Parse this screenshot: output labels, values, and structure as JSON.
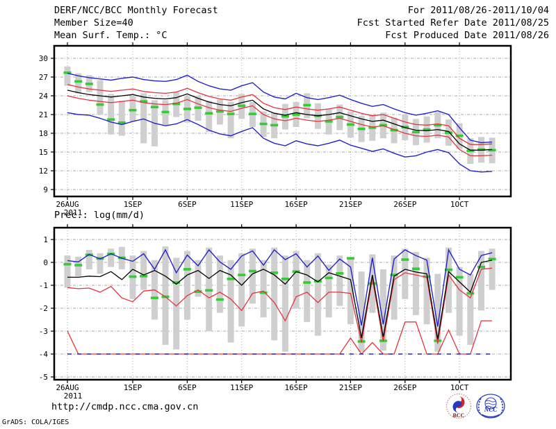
{
  "header": {
    "title": "DERF/NCC/BCC Monthly Forecast",
    "member_size": "Member Size=40",
    "for_range": "For 2011/08/26-2011/10/04",
    "fcst_started": "Fcst Started Refer Date 2011/08/25",
    "fcst_produced": "Fcst Produced Date 2011/08/26"
  },
  "footer": {
    "url": "http://cmdp.ncc.cma.gov.cn",
    "credit": "GrADS: COLA/IGES"
  },
  "logos": {
    "bcc_label": "BCC",
    "ncc_label": "NCC"
  },
  "colors": {
    "blue": "#2222cc",
    "red": "#e6323c",
    "green": "#33cc33",
    "gray_bar": "#cfcfcf",
    "black": "#000000",
    "grid": "#a8a8a8"
  },
  "chart_data": [
    {
      "type": "line",
      "name": "temperature-chart",
      "title": "Mean Surf. Temp.: °C",
      "start_date": "2011-08-26",
      "end_date": "2011-10-04",
      "n_days": 40,
      "ylim": [
        9,
        30
      ],
      "y_ticks": [
        30,
        27,
        24,
        21,
        18,
        15,
        12,
        9
      ],
      "x_tick_labels": [
        "26AUG",
        "1SEP",
        "6SEP",
        "11SEP",
        "16SEP",
        "21SEP",
        "26SEP",
        "1OCT"
      ],
      "x_tick_day_index": [
        0,
        6,
        11,
        16,
        21,
        26,
        31,
        36
      ],
      "x_sub_label": "2011",
      "grid": true,
      "series": {
        "member_spread_bar": {
          "color": "#cfcfcf",
          "low": [
            25.6,
            24.4,
            24.6,
            21.0,
            17.8,
            17.6,
            19.9,
            16.4,
            15.9,
            19.3,
            20.6,
            19.7,
            20.0,
            18.2,
            19.4,
            17.2,
            20.3,
            19.0,
            17.4,
            17.2,
            18.6,
            19.0,
            20.4,
            18.7,
            17.8,
            18.5,
            17.3,
            16.6,
            16.8,
            17.2,
            16.4,
            16.9,
            16.1,
            16.5,
            17.2,
            16.0,
            15.5,
            13.1,
            13.3,
            13.2
          ],
          "high": [
            28.7,
            27.6,
            27.3,
            26.5,
            24.3,
            23.2,
            23.9,
            24.4,
            23.3,
            23.3,
            24.6,
            23.9,
            24.0,
            23.2,
            23.4,
            23.0,
            24.3,
            23.0,
            21.5,
            21.3,
            22.7,
            23.0,
            24.4,
            22.8,
            21.9,
            22.6,
            21.5,
            20.8,
            21.0,
            21.3,
            20.5,
            21.0,
            20.3,
            20.7,
            21.4,
            20.2,
            19.6,
            17.2,
            17.4,
            17.3
          ]
        },
        "observation_marks": {
          "color": "#33cc33",
          "values": [
            27.7,
            26.3,
            25.9,
            22.6,
            20.2,
            19.7,
            21.7,
            23.1,
            22.2,
            21.4,
            22.7,
            21.9,
            22.1,
            21.2,
            21.5,
            21.1,
            22.4,
            21.1,
            19.5,
            19.3,
            20.7,
            21.0,
            22.5,
            20.8,
            19.9,
            20.6,
            19.4,
            18.7,
            18.9,
            19.3,
            18.5,
            19.0,
            18.2,
            18.6,
            19.3,
            18.1,
            17.6,
            15.2,
            15.4,
            15.3
          ]
        },
        "max_member_line": {
          "color": "#2222cc",
          "width": 1.4,
          "values": [
            27.6,
            27.2,
            26.9,
            26.7,
            26.5,
            26.8,
            27.0,
            26.6,
            26.4,
            26.3,
            26.6,
            27.3,
            26.3,
            25.6,
            25.1,
            24.9,
            25.6,
            26.1,
            24.6,
            23.8,
            23.5,
            24.4,
            23.7,
            23.4,
            23.7,
            24.1,
            23.4,
            22.8,
            22.3,
            22.6,
            21.9,
            21.3,
            20.9,
            21.2,
            21.6,
            21.0,
            18.9,
            16.9,
            16.5,
            16.6
          ]
        },
        "min_member_line": {
          "color": "#2222cc",
          "width": 1.4,
          "values": [
            21.3,
            21.0,
            20.9,
            20.4,
            19.8,
            19.4,
            19.9,
            20.3,
            19.6,
            19.2,
            19.5,
            20.2,
            19.4,
            18.5,
            17.9,
            17.6,
            18.3,
            18.9,
            17.2,
            16.4,
            16.0,
            16.8,
            16.3,
            16.0,
            16.4,
            16.9,
            16.1,
            15.6,
            15.1,
            15.5,
            14.8,
            14.2,
            14.4,
            15.0,
            15.4,
            14.9,
            13.1,
            12.0,
            11.8,
            11.9
          ]
        },
        "upper_spread_line": {
          "color": "#e6323c",
          "width": 1.3,
          "values": [
            25.8,
            25.4,
            25.1,
            24.9,
            24.7,
            24.9,
            25.1,
            24.7,
            24.5,
            24.4,
            24.6,
            25.2,
            24.5,
            23.9,
            23.5,
            23.3,
            23.8,
            24.2,
            22.8,
            22.1,
            21.8,
            22.2,
            21.9,
            21.7,
            21.9,
            22.2,
            21.7,
            21.2,
            20.8,
            21.0,
            20.4,
            19.8,
            19.4,
            19.3,
            19.5,
            19.2,
            17.2,
            16.2,
            16.2,
            16.3
          ]
        },
        "lower_spread_line": {
          "color": "#e6323c",
          "width": 1.3,
          "values": [
            24.0,
            23.6,
            23.3,
            23.1,
            22.9,
            23.1,
            23.3,
            22.9,
            22.7,
            22.6,
            22.8,
            23.4,
            22.7,
            22.1,
            21.7,
            21.5,
            22.0,
            22.4,
            21.0,
            20.3,
            20.0,
            20.4,
            20.1,
            19.9,
            20.1,
            20.4,
            19.9,
            19.4,
            19.0,
            19.2,
            18.6,
            18.0,
            17.6,
            17.5,
            17.7,
            17.4,
            15.4,
            14.4,
            14.4,
            14.5
          ]
        },
        "ensemble_mean_line": {
          "color": "#000000",
          "width": 1.3,
          "values": [
            24.9,
            24.5,
            24.2,
            24.0,
            23.8,
            24.0,
            24.2,
            23.8,
            23.6,
            23.5,
            23.7,
            24.3,
            23.6,
            23.0,
            22.6,
            22.4,
            22.9,
            23.3,
            21.9,
            21.2,
            20.9,
            21.3,
            21.0,
            20.8,
            21.0,
            21.3,
            20.8,
            20.3,
            19.9,
            20.1,
            19.5,
            18.9,
            18.5,
            18.4,
            18.6,
            18.3,
            16.3,
            15.3,
            15.3,
            15.4
          ]
        }
      }
    },
    {
      "type": "line",
      "name": "precipitation-chart",
      "title": "Prec.: log(mm/d)",
      "start_date": "2011-08-26",
      "end_date": "2011-10-04",
      "n_days": 40,
      "ylim": [
        -5,
        1
      ],
      "y_ticks": [
        1,
        0,
        -1,
        -2,
        -3,
        -4,
        -5
      ],
      "x_tick_labels": [
        "26AUG",
        "1SEP",
        "6SEP",
        "11SEP",
        "16SEP",
        "21SEP",
        "26SEP",
        "1OCT"
      ],
      "x_tick_day_index": [
        0,
        6,
        11,
        16,
        21,
        26,
        31,
        36
      ],
      "x_sub_label": "2011",
      "grid": true,
      "series": {
        "member_spread_bar": {
          "color": "#cfcfcf",
          "low": [
            -1.1,
            -0.6,
            -0.3,
            -0.5,
            -0.2,
            -0.3,
            -1.6,
            -1.2,
            -2.5,
            -3.6,
            -3.8,
            -2.5,
            -1.5,
            -3.0,
            -2.2,
            -3.5,
            -2.8,
            -1.8,
            -2.4,
            -3.4,
            -3.9,
            -2.0,
            -2.6,
            -3.2,
            -2.4,
            -1.9,
            -2.7,
            -3.9,
            -2.2,
            -3.85,
            -2.5,
            -1.6,
            -2.3,
            -2.7,
            -3.9,
            -2.2,
            -3.2,
            -3.6,
            -2.1,
            -1.2
          ],
          "high": [
            0.3,
            0.25,
            0.55,
            0.4,
            0.6,
            0.68,
            0.3,
            0.5,
            0.1,
            0.7,
            0.2,
            0.5,
            0.1,
            0.65,
            0.3,
            0.1,
            0.4,
            0.6,
            0.1,
            0.65,
            0.3,
            0.5,
            0.1,
            0.4,
            -0.1,
            0.3,
            0.2,
            -0.4,
            0.35,
            -0.3,
            0.3,
            0.6,
            0.45,
            0.2,
            -0.5,
            0.65,
            -0.2,
            -0.5,
            0.5,
            0.6
          ]
        },
        "observation_marks": {
          "color": "#33cc33",
          "values": [
            -0.08,
            -0.12,
            0.33,
            0.17,
            0.37,
            0.2,
            -0.62,
            -0.6,
            -1.55,
            -1.5,
            -0.88,
            -0.3,
            -1.28,
            -1.22,
            -1.62,
            -0.72,
            -0.55,
            -0.38,
            -1.32,
            -0.45,
            -0.72,
            -0.4,
            -0.88,
            -0.82,
            -0.68,
            -0.48,
            0.18,
            -3.45,
            -0.92,
            -3.42,
            -0.55,
            0.12,
            -0.28,
            -0.62,
            -3.42,
            -0.32,
            -0.65,
            -1.35,
            -0.2,
            0.15
          ]
        },
        "max_member_line": {
          "color": "#2222cc",
          "width": 1.4,
          "values": [
            0.08,
            0.02,
            0.35,
            0.15,
            0.38,
            0.18,
            0.05,
            0.38,
            -0.3,
            0.55,
            -0.45,
            0.32,
            -0.15,
            0.55,
            0.02,
            -0.3,
            0.28,
            0.5,
            -0.12,
            0.55,
            0.12,
            0.38,
            -0.2,
            0.28,
            -0.35,
            0.15,
            -0.2,
            -2.75,
            0.2,
            -2.7,
            0.15,
            0.55,
            0.3,
            0.1,
            -2.8,
            0.55,
            -0.3,
            -0.55,
            0.3,
            0.42
          ]
        },
        "min_member_line": {
          "color": "#2222cc",
          "width": 1.4,
          "dasharray": "6 8",
          "values": [
            -4,
            -4,
            -4,
            -4,
            -4,
            -4,
            -4,
            -4,
            -4,
            -4,
            -4,
            -4,
            -4,
            -4,
            -4,
            -4,
            -4,
            -4,
            -4,
            -4,
            -4,
            -4,
            -4,
            -4,
            -4,
            -4,
            -4,
            -4,
            -4,
            -4,
            -4,
            -4,
            -4,
            -4,
            -4,
            -4,
            -4,
            -4,
            -4,
            -4
          ]
        },
        "upper_spread_line": {
          "color": "#e6323c",
          "width": 1.3,
          "values": [
            -1.1,
            -1.15,
            -1.12,
            -1.3,
            -1.05,
            -1.55,
            -1.72,
            -1.25,
            -1.2,
            -1.5,
            -1.9,
            -1.45,
            -1.2,
            -1.55,
            -1.3,
            -1.6,
            -2.1,
            -1.35,
            -1.25,
            -1.75,
            -2.55,
            -1.5,
            -1.3,
            -1.75,
            -1.3,
            -1.3,
            -1.35,
            -3.5,
            -0.7,
            -3.45,
            -0.75,
            -0.45,
            -0.55,
            -0.65,
            -3.55,
            -0.55,
            -1.2,
            -1.55,
            -0.3,
            -0.25
          ]
        },
        "lower_spread_line": {
          "color": "#e6323c",
          "width": 1.3,
          "values": [
            -3.0,
            -4,
            -4,
            -4,
            -4,
            -4,
            -4,
            -4,
            -4,
            -4,
            -4,
            -4,
            -4,
            -4,
            -4,
            -4,
            -4,
            -4,
            -4,
            -4,
            -4,
            -4,
            -4,
            -4,
            -4,
            -4,
            -3.3,
            -4,
            -3.5,
            -4,
            -4,
            -2.6,
            -2.6,
            -4,
            -4,
            -2.95,
            -4,
            -4,
            -2.55,
            -2.55
          ]
        },
        "ensemble_mean_line": {
          "color": "#000000",
          "width": 1.3,
          "values": [
            -0.65,
            -0.65,
            -0.6,
            -0.62,
            -0.4,
            -0.75,
            -0.3,
            -0.55,
            -0.35,
            -0.6,
            -0.95,
            -0.55,
            -0.35,
            -0.7,
            -0.35,
            -0.55,
            -1.0,
            -0.5,
            -0.3,
            -0.55,
            -0.95,
            -0.4,
            -0.55,
            -0.85,
            -0.45,
            -0.6,
            -0.75,
            -3.3,
            -0.55,
            -3.25,
            -0.6,
            -0.3,
            -0.42,
            -0.5,
            -3.35,
            -0.4,
            -0.85,
            -1.3,
            0.0,
            0.1
          ]
        }
      }
    }
  ]
}
